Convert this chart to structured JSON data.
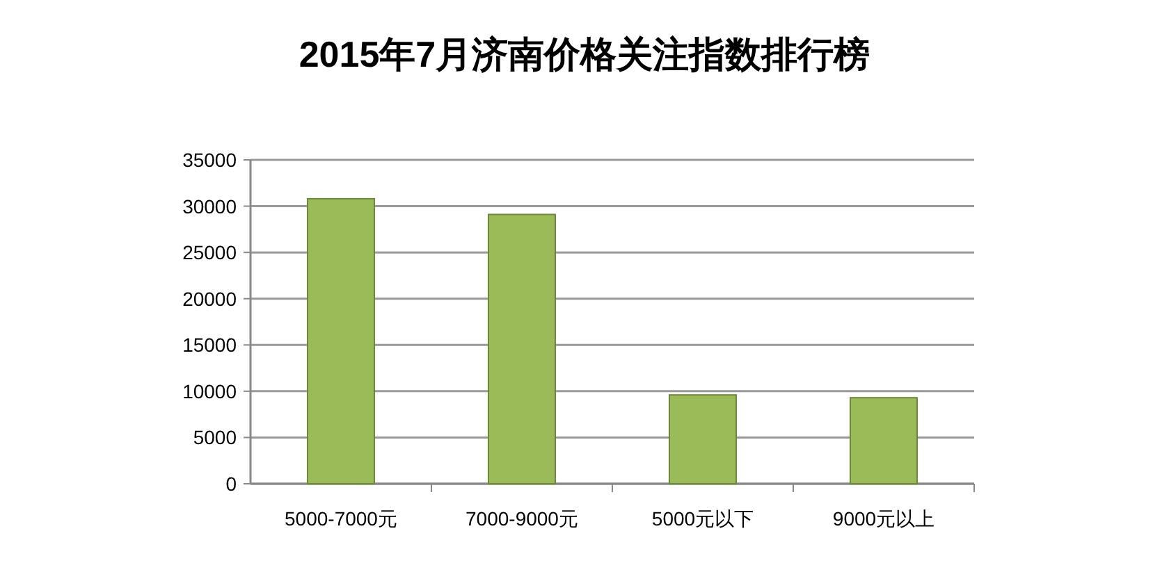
{
  "chart_data": {
    "type": "bar",
    "title": "2015年7月济南价格关注指数排行榜",
    "categories": [
      "5000-7000元",
      "7000-9000元",
      "5000元以下",
      "9000元以上"
    ],
    "values": [
      30800,
      29100,
      9600,
      9300
    ],
    "color": "#9bbb59",
    "ylim": [
      0,
      35000
    ],
    "yticks": [
      0,
      5000,
      10000,
      15000,
      20000,
      25000,
      30000,
      35000
    ],
    "grid": "y"
  }
}
